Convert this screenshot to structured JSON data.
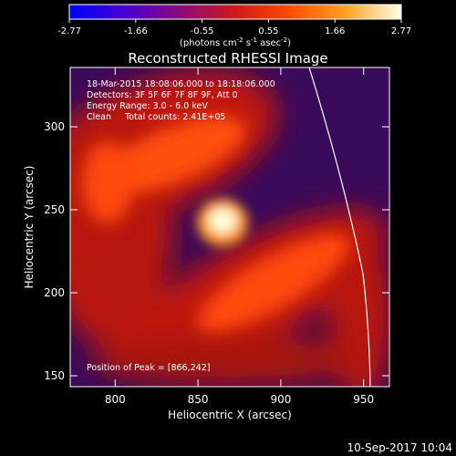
{
  "colorbar": {
    "tick_labels": [
      "-2.77",
      "-1.66",
      "-0.55",
      "0.55",
      "1.66",
      "2.77"
    ],
    "range": [
      -2.77,
      2.77
    ],
    "stops": [
      "#0000ff",
      "#5b00c8",
      "#a01040",
      "#e03000",
      "#ff8a10",
      "#ffff60",
      "#ffffff"
    ],
    "units": "(photons cm",
    "units_exp1": "-2",
    "units_mid": " s",
    "units_exp2": "-1",
    "units_end": " asec",
    "units_exp3": "-2",
    "units_close": ")"
  },
  "image": {
    "title": "Reconstructed RHESSI Image",
    "info_lines": [
      "18-Mar-2015 18:08:06.000 to 18:18:06.000",
      "Detectors: 3F 5F 6F 7F 8F 9F, Att 0",
      "Energy Range: 3.0 - 6.0 keV",
      "Clean     Total counts: 2.41E+05"
    ],
    "peak_label": "Position of Peak = [866,242]",
    "x_label": "Heliocentric X (arcsec)",
    "y_label": "Heliocentric Y (arcsec)",
    "x_ticks": [
      "800",
      "850",
      "900",
      "950"
    ],
    "y_ticks": [
      "150",
      "200",
      "250",
      "300"
    ],
    "x_range": [
      770,
      963
    ],
    "y_range": [
      143,
      335
    ],
    "peak": [
      866,
      242
    ],
    "limb_color": "#ffffff",
    "colors": {
      "background": "#000000",
      "dark": "#3a0a5a",
      "mid": "#c8200a",
      "bright": "#ff5a10",
      "peak": "#ffffff"
    }
  },
  "footer": {
    "timestamp": "10-Sep-2017 10:04"
  }
}
